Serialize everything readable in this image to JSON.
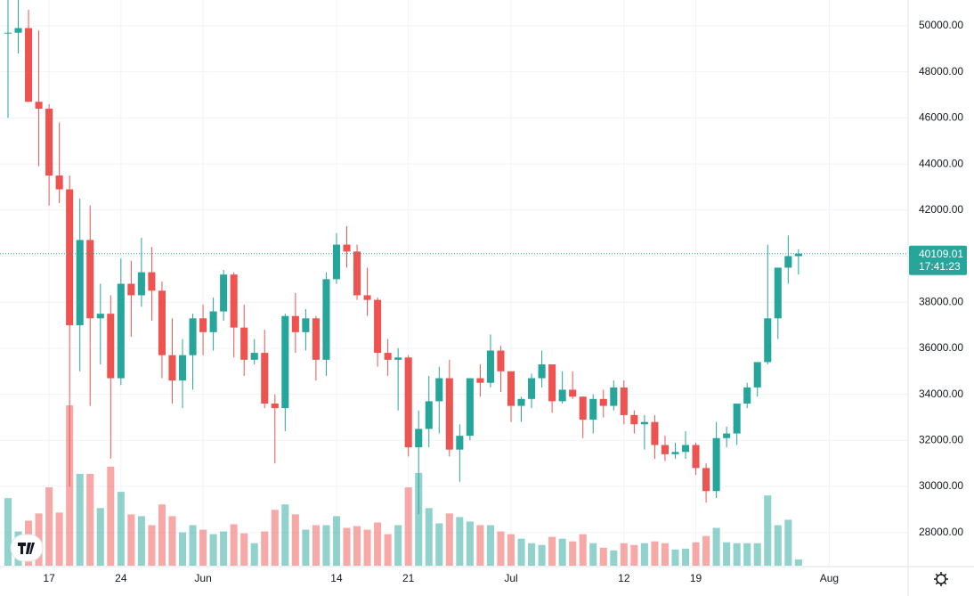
{
  "chart_data": {
    "type": "candlestick",
    "up_color": "#26a69a",
    "down_color": "#ef5350",
    "grid": true,
    "xlim": [
      -0.78,
      87.68
    ],
    "xticks": [
      {
        "value": 4,
        "label": "17"
      },
      {
        "value": 11,
        "label": "24"
      },
      {
        "value": 19,
        "label": "Jun"
      },
      {
        "value": 32,
        "label": "14"
      },
      {
        "value": 39,
        "label": "21"
      },
      {
        "value": 49,
        "label": "Jul"
      },
      {
        "value": 60,
        "label": "12"
      },
      {
        "value": 67,
        "label": "19"
      },
      {
        "value": 80,
        "label": "Aug"
      }
    ],
    "ylim": [
      26560,
      51120
    ],
    "yticks": [
      {
        "value": 28000,
        "label": "28000.00"
      },
      {
        "value": 30000,
        "label": "30000.00"
      },
      {
        "value": 32000,
        "label": "32000.00"
      },
      {
        "value": 34000,
        "label": "34000.00"
      },
      {
        "value": 36000,
        "label": "36000.00"
      },
      {
        "value": 38000,
        "label": "38000.00"
      },
      {
        "value": 40000,
        "label": "40000.00"
      },
      {
        "value": 42000,
        "label": "42000.00"
      },
      {
        "value": 44000,
        "label": "44000.00"
      },
      {
        "value": 46000,
        "label": "46000.00"
      },
      {
        "value": 48000,
        "label": "48000.00"
      },
      {
        "value": 50000,
        "label": "50000.00"
      }
    ],
    "open": [
      49700,
      49700,
      49900,
      46700,
      46400,
      43500,
      42900,
      37000,
      40700,
      37300,
      37500,
      34700,
      38800,
      38300,
      39300,
      38500,
      35700,
      34600,
      35700,
      37300,
      36700,
      37600,
      39200,
      36900,
      35500,
      35800,
      33600,
      33400,
      37400,
      36700,
      37300,
      35500,
      39000,
      40500,
      40200,
      38300,
      38100,
      35800,
      35500,
      35600,
      31700,
      32500,
      33700,
      34700,
      31600,
      32200,
      34700,
      34500,
      35900,
      35000,
      33500,
      33800,
      34700,
      35300,
      33700,
      34200,
      33900,
      32900,
      33800,
      33500,
      34300,
      33100,
      32700,
      32800,
      31800,
      31400,
      31500,
      31800,
      30800,
      29800,
      32100,
      32300,
      33600,
      34300,
      35400,
      37300,
      39500,
      40000
    ],
    "high": [
      51300,
      51500,
      50700,
      49800,
      46600,
      45800,
      43500,
      42500,
      42200,
      38800,
      38300,
      39900,
      39800,
      40800,
      40400,
      38900,
      37300,
      36400,
      37500,
      37900,
      38200,
      39400,
      39300,
      37900,
      36400,
      36800,
      34000,
      37500,
      38400,
      37700,
      37400,
      39300,
      41000,
      41300,
      40500,
      39500,
      38200,
      36400,
      36000,
      35700,
      33300,
      34800,
      35200,
      35500,
      32700,
      34700,
      35300,
      36600,
      36100,
      35000,
      33900,
      34900,
      35900,
      35300,
      35000,
      35000,
      33900,
      34000,
      34200,
      34600,
      34600,
      33300,
      33100,
      33100,
      32200,
      31900,
      32400,
      31900,
      31000,
      32800,
      32600,
      33600,
      34500,
      35400,
      40500,
      39500,
      40900,
      40300
    ],
    "low": [
      46000,
      48800,
      46700,
      43900,
      42200,
      42300,
      30000,
      35000,
      33500,
      35300,
      31200,
      34400,
      36500,
      37800,
      37200,
      34700,
      33600,
      33400,
      34200,
      35700,
      35900,
      37200,
      35600,
      34800,
      35300,
      33400,
      31000,
      32400,
      35800,
      35900,
      34600,
      34800,
      38800,
      39500,
      38100,
      37400,
      35200,
      34800,
      33300,
      31300,
      28800,
      31700,
      32300,
      31300,
      30200,
      32000,
      33900,
      34300,
      34100,
      32800,
      32800,
      33400,
      34300,
      33200,
      33600,
      33800,
      32100,
      32300,
      33000,
      33300,
      32700,
      32300,
      31600,
      31200,
      31100,
      31200,
      31200,
      30500,
      29300,
      29500,
      31700,
      31800,
      33400,
      33900,
      35300,
      36400,
      38800,
      39200
    ],
    "close": [
      49700,
      49900,
      46700,
      46400,
      43500,
      42900,
      37000,
      40700,
      37300,
      37500,
      34700,
      38800,
      38300,
      39300,
      38500,
      35700,
      34600,
      35700,
      37300,
      36700,
      37600,
      39200,
      36900,
      35500,
      35800,
      33600,
      33400,
      37400,
      36700,
      37300,
      35500,
      39000,
      40500,
      40200,
      38300,
      38100,
      35800,
      35500,
      35600,
      31700,
      32500,
      33700,
      34700,
      31600,
      32200,
      34700,
      34500,
      35900,
      35000,
      33500,
      33800,
      34700,
      35300,
      33700,
      34200,
      33900,
      32900,
      33800,
      33500,
      34300,
      33100,
      32700,
      32800,
      31800,
      31400,
      31500,
      31800,
      30800,
      29800,
      32100,
      32300,
      33600,
      34300,
      35400,
      37300,
      39500,
      40000,
      40109.01
    ],
    "volume": [
      75,
      38,
      50,
      58,
      87,
      59,
      178,
      102,
      102,
      64,
      110,
      82,
      57,
      55,
      45,
      68,
      55,
      37,
      45,
      40,
      35,
      38,
      46,
      36,
      25,
      38,
      62,
      68,
      57,
      40,
      45,
      45,
      55,
      42,
      44,
      40,
      48,
      35,
      45,
      87,
      103,
      64,
      47,
      58,
      54,
      49,
      45,
      45,
      38,
      35,
      30,
      25,
      23,
      32,
      30,
      27,
      35,
      25,
      20,
      17,
      25,
      23,
      25,
      27,
      25,
      18,
      19,
      26,
      33,
      42,
      26,
      25,
      25,
      25,
      78,
      45,
      51,
      7
    ],
    "countdown": "17:41:23"
  }
}
